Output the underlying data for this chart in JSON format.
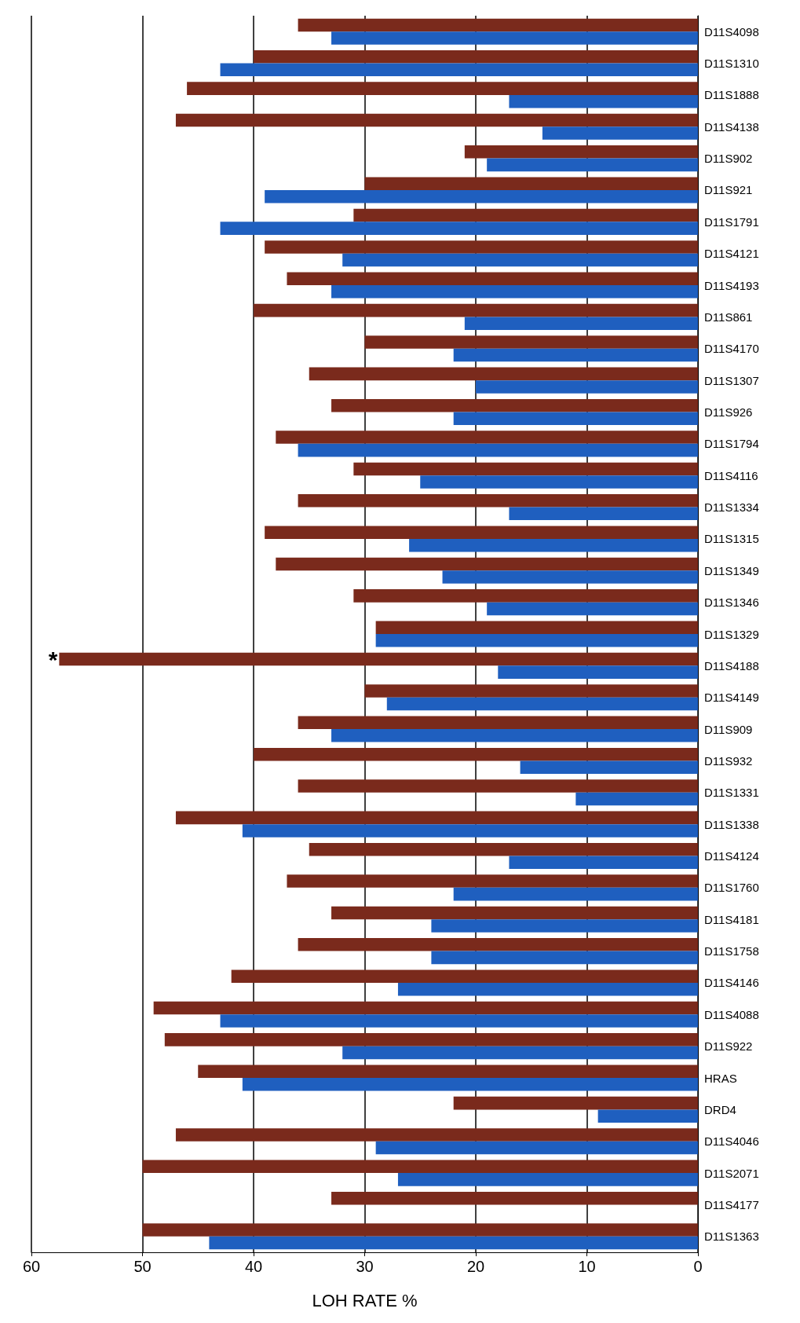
{
  "chart_data": {
    "type": "bar",
    "orientation": "horizontal",
    "xlabel": "LOH RATE %",
    "categories": [
      "D11S4098",
      "D11S1310",
      "D11S1888",
      "D11S4138",
      "D11S902",
      "D11S921",
      "D11S1791",
      "D11S4121",
      "D11S4193",
      "D11S861",
      "D11S4170",
      "D11S1307",
      "D11S926",
      "D11S1794",
      "D11S4116",
      "D11S1334",
      "D11S1315",
      "D11S1349",
      "D11S1346",
      "D11S1329",
      "D11S4188",
      "D11S4149",
      "D11S909",
      "D11S932",
      "D11S1331",
      "D11S1338",
      "D11S4124",
      "D11S1760",
      "D11S4181",
      "D11S1758",
      "D11S4146",
      "D11S4088",
      "D11S922",
      "HRAS",
      "DRD4",
      "D11S4046",
      "D11S2071",
      "D11S4177",
      "D11S1363"
    ],
    "series": [
      {
        "color": "#7a2a1c",
        "values": [
          36,
          40,
          46,
          47,
          21,
          30,
          31,
          39,
          37,
          40,
          30,
          35,
          33,
          38,
          31,
          36,
          39,
          38,
          31,
          29,
          57.5,
          30,
          36,
          40,
          36,
          47,
          35,
          37,
          33,
          36,
          42,
          49,
          48,
          45,
          22,
          47,
          50,
          33,
          50
        ]
      },
      {
        "color": "#1f5fbf",
        "values": [
          33,
          43,
          17,
          14,
          19,
          39,
          43,
          32,
          33,
          21,
          22,
          20,
          22,
          36,
          25,
          17,
          26,
          23,
          19,
          29,
          18,
          28,
          33,
          16,
          11,
          41,
          17,
          22,
          24,
          24,
          27,
          43,
          32,
          41,
          9,
          29,
          27,
          0,
          44
        ]
      }
    ],
    "xlim": [
      60,
      0
    ],
    "xticks": [
      0,
      10,
      20,
      30,
      40,
      50,
      60
    ],
    "grid": "x",
    "annotations": [
      {
        "text": "*",
        "x": 57.5,
        "y": "D11S4188"
      }
    ]
  }
}
